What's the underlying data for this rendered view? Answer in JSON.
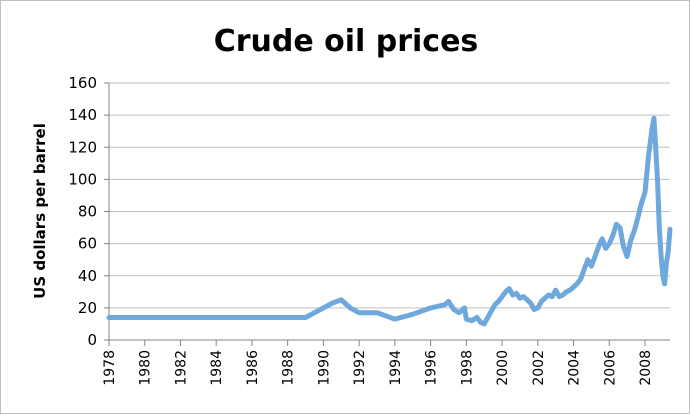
{
  "colors": {
    "series": "#6fa8dc",
    "grid": "#bfbfbf",
    "axis": "#868686",
    "background": "#ffffff"
  },
  "chart_data": {
    "type": "line",
    "title": "Crude oil prices",
    "xlabel": "",
    "ylabel": "US dollars per barrel",
    "xlim": [
      1978,
      2009.4
    ],
    "ylim": [
      0,
      160
    ],
    "yticks": [
      0,
      20,
      40,
      60,
      80,
      100,
      120,
      140,
      160
    ],
    "xticks": [
      1978,
      1980,
      1982,
      1984,
      1986,
      1988,
      1990,
      1992,
      1994,
      1996,
      1998,
      2000,
      2002,
      2004,
      2006,
      2008
    ],
    "grid": true,
    "legend": "none",
    "series": [
      {
        "x": [
          1978.0,
          1989.0,
          1990.0,
          1990.5,
          1991.0,
          1991.5,
          1992.0,
          1993.0,
          1994.0,
          1995.0,
          1996.0,
          1996.8,
          1997.0,
          1997.3,
          1997.6,
          1997.9,
          1998.0,
          1998.3,
          1998.6,
          1998.8,
          1999.0,
          1999.2,
          1999.4,
          1999.6,
          1999.8,
          2000.0,
          2000.2,
          2000.4,
          2000.6,
          2000.8,
          2001.0,
          2001.2,
          2001.4,
          2001.6,
          2001.8,
          2002.0,
          2002.2,
          2002.4,
          2002.6,
          2002.8,
          2003.0,
          2003.2,
          2003.4,
          2003.6,
          2003.8,
          2004.0,
          2004.2,
          2004.4,
          2004.6,
          2004.8,
          2005.0,
          2005.2,
          2005.4,
          2005.6,
          2005.8,
          2006.0,
          2006.2,
          2006.4,
          2006.6,
          2006.8,
          2007.0,
          2007.2,
          2007.4,
          2007.6,
          2007.8,
          2008.0,
          2008.2,
          2008.4,
          2008.5,
          2008.6,
          2008.7,
          2008.8,
          2008.9,
          2009.0,
          2009.1,
          2009.2,
          2009.3,
          2009.4
        ],
        "values": [
          14,
          14,
          20,
          23,
          25,
          20,
          17,
          17,
          13,
          16,
          20,
          22,
          24,
          19,
          17,
          20,
          13,
          12,
          14,
          11,
          10,
          14,
          18,
          22,
          24,
          27,
          30,
          32,
          28,
          29,
          26,
          27,
          25,
          23,
          19,
          20,
          24,
          26,
          28,
          27,
          31,
          27,
          28,
          30,
          31,
          33,
          35,
          38,
          44,
          50,
          46,
          52,
          58,
          63,
          57,
          60,
          65,
          72,
          70,
          58,
          52,
          62,
          68,
          76,
          85,
          92,
          115,
          132,
          138,
          120,
          100,
          70,
          52,
          40,
          35,
          48,
          55,
          69
        ]
      }
    ]
  }
}
